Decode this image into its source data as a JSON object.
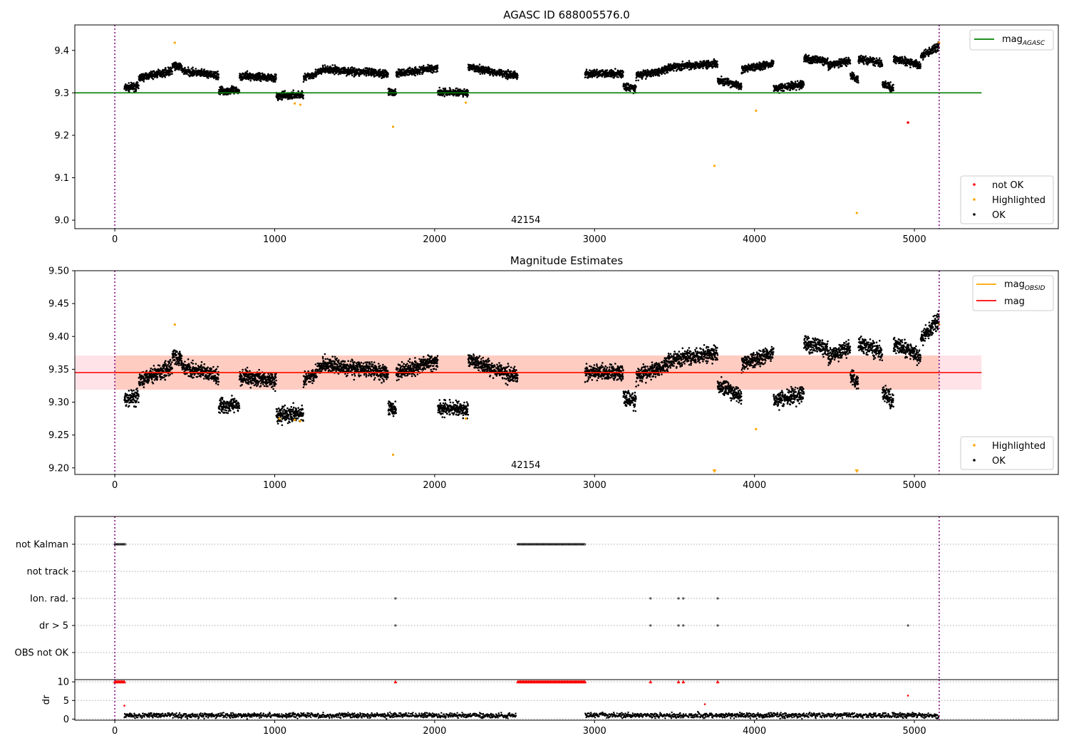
{
  "chart_data": [
    {
      "type": "scatter",
      "title": "AGASC ID 688005576.0",
      "xlim": [
        -250,
        5900
      ],
      "ylim": [
        8.98,
        9.46
      ],
      "xticks": [
        0,
        1000,
        2000,
        3000,
        4000,
        5000
      ],
      "yticks": [
        9.0,
        9.1,
        9.2,
        9.3,
        9.4
      ],
      "annotation": "42154",
      "reference_lines": [
        {
          "name": "mag",
          "subscript": "AGASC",
          "value": 9.3,
          "color": "#008000",
          "x_range": [
            -250,
            5420
          ]
        }
      ],
      "vertical_lines": [
        0,
        5155
      ],
      "gaps": [
        [
          2510,
          2940
        ]
      ],
      "legends": [
        {
          "position": "upper-right",
          "entries": [
            {
              "label": "mag",
              "subscript": "AGASC",
              "color": "#008000",
              "marker": "line"
            }
          ]
        },
        {
          "position": "lower-right",
          "entries": [
            {
              "label": "not OK",
              "color": "#ff0000",
              "marker": "dot"
            },
            {
              "label": "Highlighted",
              "color": "#ffa500",
              "marker": "dot"
            },
            {
              "label": "OK",
              "color": "#000000",
              "marker": "dot"
            }
          ]
        }
      ],
      "series": [
        {
          "name": "OK",
          "color": "#000000",
          "description": "dense time series of ~5000 points between 9.27 and 9.42"
        },
        {
          "name": "Highlighted",
          "color": "#ffa500",
          "points": [
            [
              375,
              9.418
            ],
            [
              1125,
              9.275
            ],
            [
              1160,
              9.272
            ],
            [
              1740,
              9.22
            ],
            [
              2195,
              9.277
            ],
            [
              3750,
              9.128
            ],
            [
              4010,
              9.258
            ],
            [
              4640,
              9.017
            ],
            [
              5155,
              9.418
            ]
          ]
        },
        {
          "name": "not OK",
          "color": "#ff0000",
          "points": [
            [
              4960,
              9.23
            ]
          ]
        }
      ]
    },
    {
      "type": "scatter",
      "title": "Magnitude Estimates",
      "xlim": [
        -250,
        5900
      ],
      "ylim": [
        9.19,
        9.5
      ],
      "xticks": [
        0,
        1000,
        2000,
        3000,
        4000,
        5000
      ],
      "yticks": [
        9.2,
        9.25,
        9.3,
        9.35,
        9.4,
        9.45,
        9.5
      ],
      "annotation": "42154",
      "reference_lines": [
        {
          "name": "mag",
          "value": 9.345,
          "color": "#ff0000",
          "x_range": [
            -250,
            5420
          ]
        },
        {
          "name": "mag",
          "subscript": "OBSID",
          "value": 9.345,
          "color": "#ffa500",
          "x_range": [
            0,
            5155
          ]
        }
      ],
      "bands": [
        {
          "range": [
            9.319,
            9.371
          ],
          "x_range": [
            -250,
            5420
          ],
          "color": "#ffc0cb"
        },
        {
          "range": [
            9.319,
            9.371
          ],
          "x_range": [
            0,
            5155
          ],
          "color": "#ffa07a"
        }
      ],
      "vertical_lines": [
        0,
        5155
      ],
      "gaps": [
        [
          2510,
          2940
        ]
      ],
      "legends": [
        {
          "position": "upper-right",
          "entries": [
            {
              "label": "mag",
              "subscript": "OBSID",
              "color": "#ffa500",
              "marker": "line"
            },
            {
              "label": "mag",
              "color": "#ff0000",
              "marker": "line"
            }
          ]
        },
        {
          "position": "lower-right",
          "entries": [
            {
              "label": "Highlighted",
              "color": "#ffa500",
              "marker": "dot"
            },
            {
              "label": "OK",
              "color": "#000000",
              "marker": "dot"
            }
          ]
        }
      ],
      "series": [
        {
          "name": "OK",
          "color": "#000000",
          "description": "same time series, values 9.27 to 9.42"
        },
        {
          "name": "Highlighted",
          "color": "#ffa500",
          "points": [
            [
              375,
              9.418
            ],
            [
              1030,
              9.275
            ],
            [
              1125,
              9.273
            ],
            [
              1160,
              9.271
            ],
            [
              1740,
              9.22
            ],
            [
              2195,
              9.275
            ],
            [
              4010,
              9.259
            ],
            [
              5155,
              9.418
            ]
          ]
        },
        {
          "name": "Highlighted (off-axis)",
          "color": "#ffa500",
          "points": [
            [
              3750,
              9.192
            ],
            [
              4640,
              9.192
            ]
          ]
        }
      ]
    },
    {
      "type": "scatter",
      "title": "",
      "xlim": [
        -250,
        5900
      ],
      "yticklabels": [
        "not Kalman",
        "not track",
        "Ion. rad.",
        "dr > 5",
        "OBS not OK"
      ],
      "vertical_lines": [
        0,
        5155
      ],
      "series": [
        {
          "name": "not Kalman",
          "x_ranges": [
            [
              0,
              65
            ],
            [
              2520,
              2940
            ]
          ]
        },
        {
          "name": "not track",
          "x_ranges": []
        },
        {
          "name": "Ion. rad.",
          "points_x": [
            1755,
            3350,
            3525,
            3555,
            3770
          ]
        },
        {
          "name": "dr > 5",
          "points_x": [
            1755,
            3350,
            3525,
            3555,
            3770,
            4960
          ]
        },
        {
          "name": "OBS not OK",
          "points_x": []
        }
      ]
    },
    {
      "type": "scatter",
      "ylabel": "dr",
      "xlim": [
        -250,
        5900
      ],
      "ylim": [
        -0.3,
        10.6
      ],
      "xticks": [
        0,
        1000,
        2000,
        3000,
        4000,
        5000
      ],
      "yticks": [
        0,
        5,
        10
      ],
      "vertical_lines": [
        0,
        5155
      ],
      "gaps": [
        [
          2510,
          2940
        ]
      ],
      "series": [
        {
          "name": "dr",
          "color": "#000000",
          "description": "values between 0 and 2.5 across the full time range"
        },
        {
          "name": "dr clipped",
          "color": "#ff0000",
          "marker": "triangle",
          "value": 10,
          "x_ranges": [
            [
              0,
              65
            ],
            [
              2520,
              2940
            ]
          ],
          "points_x": [
            1755,
            3350,
            3525,
            3555,
            3770
          ]
        },
        {
          "name": "dr high",
          "color": "#ff0000",
          "points": [
            [
              60,
              3.6
            ],
            [
              3690,
              4.0
            ],
            [
              4960,
              6.3
            ]
          ]
        }
      ]
    }
  ]
}
